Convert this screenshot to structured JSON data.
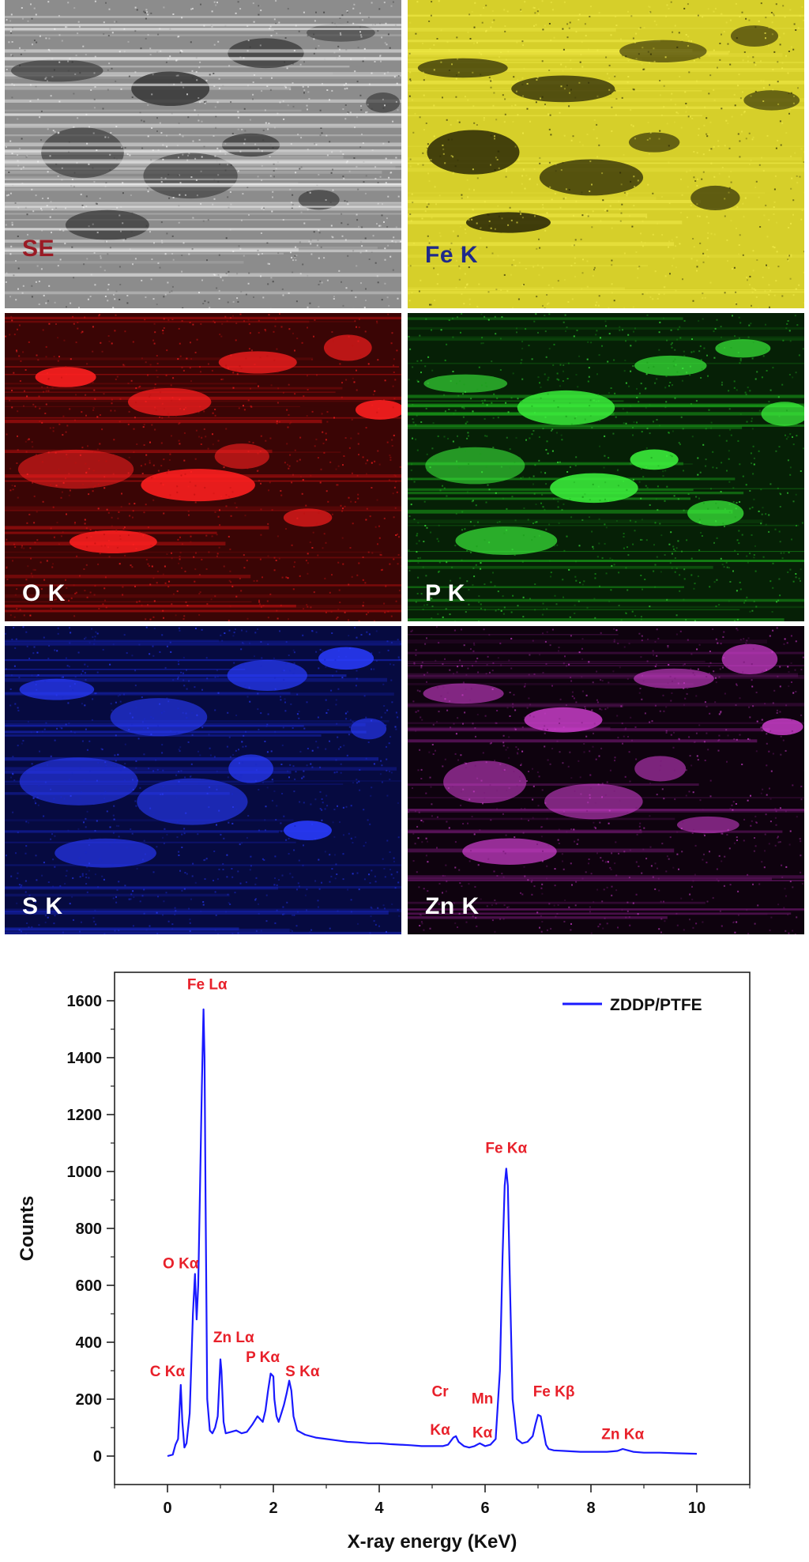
{
  "maps": [
    {
      "id": "se",
      "label": "SE",
      "label_color": "#9a1b25",
      "base": "#8c8c8c",
      "spot": "#3a3a3a",
      "streak": "#d8d8d8",
      "grayscale": true
    },
    {
      "id": "fe",
      "label": "Fe K",
      "label_color": "#1f2a8a",
      "base": "#d6cf2a",
      "spot": "#2a2806",
      "streak": "#f2ec4a"
    },
    {
      "id": "o",
      "label": "O K",
      "label_color": "#ffffff",
      "base": "#3a0505",
      "spot": "#ff2020",
      "streak": "#c01010"
    },
    {
      "id": "p",
      "label": "P K",
      "label_color": "#ffffff",
      "base": "#062006",
      "spot": "#3cf03c",
      "streak": "#1aa01a"
    },
    {
      "id": "s",
      "label": "S K",
      "label_color": "#ffffff",
      "base": "#060a40",
      "spot": "#2a3cff",
      "streak": "#1a28c8"
    },
    {
      "id": "zn",
      "label": "Zn K",
      "label_color": "#ffffff",
      "base": "#0e020e",
      "spot": "#d040d0",
      "streak": "#7a1a7a"
    }
  ],
  "chart_data": {
    "type": "line",
    "xlabel": "X-ray energy (KeV)",
    "ylabel": "Counts",
    "xlim": [
      -1,
      11
    ],
    "ylim": [
      -100,
      1700
    ],
    "xticks": [
      0,
      2,
      4,
      6,
      8,
      10
    ],
    "yticks": [
      0,
      200,
      400,
      600,
      800,
      1000,
      1200,
      1400,
      1600
    ],
    "series": [
      {
        "name": "ZDDP/PTFE",
        "color": "#1a1aff",
        "x": [
          0.0,
          0.1,
          0.15,
          0.2,
          0.25,
          0.28,
          0.32,
          0.36,
          0.42,
          0.48,
          0.52,
          0.55,
          0.58,
          0.61,
          0.65,
          0.68,
          0.7,
          0.72,
          0.75,
          0.8,
          0.85,
          0.9,
          0.95,
          1.0,
          1.02,
          1.06,
          1.1,
          1.2,
          1.3,
          1.4,
          1.5,
          1.6,
          1.7,
          1.8,
          1.85,
          1.9,
          1.95,
          2.0,
          2.02,
          2.06,
          2.1,
          2.15,
          2.2,
          2.25,
          2.3,
          2.34,
          2.38,
          2.45,
          2.6,
          2.8,
          3.0,
          3.2,
          3.4,
          3.6,
          3.8,
          4.0,
          4.2,
          4.4,
          4.6,
          4.8,
          5.0,
          5.2,
          5.3,
          5.4,
          5.45,
          5.5,
          5.6,
          5.7,
          5.8,
          5.9,
          5.95,
          6.0,
          6.1,
          6.2,
          6.28,
          6.33,
          6.37,
          6.4,
          6.43,
          6.47,
          6.52,
          6.6,
          6.7,
          6.8,
          6.9,
          6.95,
          7.0,
          7.05,
          7.1,
          7.15,
          7.2,
          7.3,
          7.5,
          7.8,
          8.0,
          8.3,
          8.5,
          8.6,
          8.7,
          8.8,
          9.0,
          9.3,
          9.6,
          10.0
        ],
        "y": [
          0,
          5,
          40,
          60,
          250,
          120,
          30,
          45,
          150,
          500,
          640,
          480,
          600,
          900,
          1300,
          1570,
          1400,
          900,
          200,
          90,
          80,
          100,
          140,
          340,
          300,
          120,
          80,
          85,
          90,
          80,
          85,
          110,
          140,
          120,
          160,
          230,
          290,
          280,
          200,
          140,
          120,
          150,
          180,
          220,
          265,
          230,
          140,
          90,
          75,
          65,
          60,
          55,
          50,
          48,
          45,
          45,
          42,
          40,
          38,
          35,
          35,
          35,
          40,
          65,
          70,
          50,
          35,
          30,
          35,
          45,
          40,
          35,
          40,
          60,
          300,
          700,
          950,
          1010,
          950,
          600,
          200,
          60,
          45,
          50,
          70,
          110,
          145,
          140,
          90,
          40,
          25,
          20,
          18,
          15,
          15,
          15,
          18,
          25,
          20,
          15,
          12,
          12,
          10,
          8
        ]
      }
    ],
    "annotations": [
      {
        "text": "Fe Lα",
        "x": 0.75,
        "y": 1640
      },
      {
        "text": "O Kα",
        "x": 0.25,
        "y": 660
      },
      {
        "text": "Zn Lα",
        "x": 1.25,
        "y": 400
      },
      {
        "text": "C Kα",
        "x": 0.0,
        "y": 280
      },
      {
        "text": "P Kα",
        "x": 1.8,
        "y": 330
      },
      {
        "text": "S Kα",
        "x": 2.55,
        "y": 280
      },
      {
        "text": "Cr",
        "x": 5.15,
        "y": 210
      },
      {
        "text": "Kα",
        "x": 5.15,
        "y": 75
      },
      {
        "text": "Mn",
        "x": 5.95,
        "y": 185
      },
      {
        "text": "Kα",
        "x": 5.95,
        "y": 65
      },
      {
        "text": "Fe Kα",
        "x": 6.4,
        "y": 1065
      },
      {
        "text": "Fe Kβ",
        "x": 7.3,
        "y": 210
      },
      {
        "text": "Zn Kα",
        "x": 8.6,
        "y": 60
      }
    ],
    "legend": "top-right",
    "grid": false
  }
}
